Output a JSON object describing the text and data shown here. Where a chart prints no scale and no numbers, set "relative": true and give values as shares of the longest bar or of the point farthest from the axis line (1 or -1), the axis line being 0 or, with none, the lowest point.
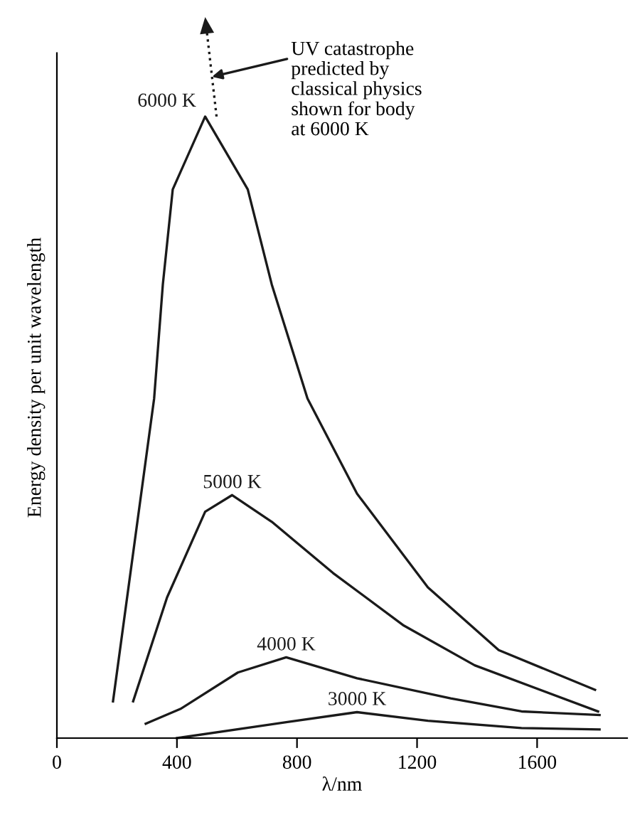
{
  "chart_data": {
    "type": "line",
    "relative": true,
    "xlabel": "λ/nm",
    "ylabel": "Energy density per unit wavelength",
    "xlim": [
      0,
      1900
    ],
    "xticks": [
      0,
      400,
      800,
      1200,
      1600
    ],
    "grid": false,
    "legend": false,
    "marker": "none",
    "tick_labels": "x",
    "annotations": [
      "UV catastrophe\npredicted by\nclassical physics\nshown for body\nat 6000 K"
    ],
    "series": [
      {
        "name": "6000 K",
        "color": "#1a1a1a",
        "x": [
          187,
          324,
          353,
          386,
          494,
          636,
          716,
          835,
          1000,
          1236,
          1472,
          1793
        ],
        "values": [
          0.051,
          0.471,
          0.629,
          0.761,
          0.862,
          0.761,
          0.629,
          0.471,
          0.339,
          0.209,
          0.122,
          0.067
        ]
      },
      {
        "name": "5000 K",
        "color": "#1a1a1a",
        "x": [
          254,
          367,
          494,
          584,
          716,
          920,
          1156,
          1392,
          1803
        ],
        "values": [
          0.051,
          0.195,
          0.314,
          0.337,
          0.3,
          0.229,
          0.156,
          0.101,
          0.037
        ]
      },
      {
        "name": "4000 K",
        "color": "#1a1a1a",
        "x": [
          296,
          414,
          603,
          764,
          1000,
          1312,
          1548,
          1808
        ],
        "values": [
          0.02,
          0.041,
          0.091,
          0.112,
          0.083,
          0.055,
          0.037,
          0.032
        ]
      },
      {
        "name": "3000 K",
        "color": "#1a1a1a",
        "x": [
          400,
          764,
          1000,
          1236,
          1548,
          1808
        ],
        "values": [
          0,
          0.022,
          0.036,
          0.024,
          0.014,
          0.012
        ]
      },
      {
        "color": "#1a1a1a",
        "line_style": "dotted",
        "x": [
          532,
          494
        ],
        "values": [
          0.862,
          1.0
        ]
      }
    ]
  }
}
